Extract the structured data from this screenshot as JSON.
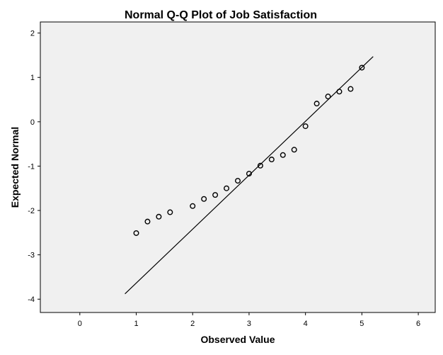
{
  "chart_data": {
    "type": "scatter",
    "title": "Normal Q-Q Plot of Job Satisfaction",
    "xlabel": "Observed Value",
    "ylabel": "Expected Normal",
    "xlim": [
      -0.7,
      6.3
    ],
    "ylim": [
      -4.3,
      2.25
    ],
    "x_ticks": [
      0,
      1,
      2,
      3,
      4,
      5,
      6
    ],
    "y_ticks": [
      2,
      1,
      0,
      -1,
      -2,
      -3,
      -4
    ],
    "grid": false,
    "background_color": "#f0f0f0",
    "marker_color": "#000000",
    "points": [
      {
        "x": 1.0,
        "y": -2.51
      },
      {
        "x": 1.2,
        "y": -2.25
      },
      {
        "x": 1.4,
        "y": -2.14
      },
      {
        "x": 1.6,
        "y": -2.04
      },
      {
        "x": 2.0,
        "y": -1.9
      },
      {
        "x": 2.2,
        "y": -1.74
      },
      {
        "x": 2.4,
        "y": -1.65
      },
      {
        "x": 2.6,
        "y": -1.5
      },
      {
        "x": 2.8,
        "y": -1.33
      },
      {
        "x": 3.0,
        "y": -1.17
      },
      {
        "x": 3.2,
        "y": -0.99
      },
      {
        "x": 3.4,
        "y": -0.85
      },
      {
        "x": 3.6,
        "y": -0.75
      },
      {
        "x": 3.8,
        "y": -0.63
      },
      {
        "x": 4.0,
        "y": -0.1
      },
      {
        "x": 4.2,
        "y": 0.41
      },
      {
        "x": 4.4,
        "y": 0.57
      },
      {
        "x": 4.6,
        "y": 0.68
      },
      {
        "x": 4.8,
        "y": 0.74
      },
      {
        "x": 5.0,
        "y": 1.22
      }
    ],
    "reference_line": {
      "x1": 0.8,
      "y1": -3.88,
      "x2": 5.2,
      "y2": 1.47
    }
  }
}
